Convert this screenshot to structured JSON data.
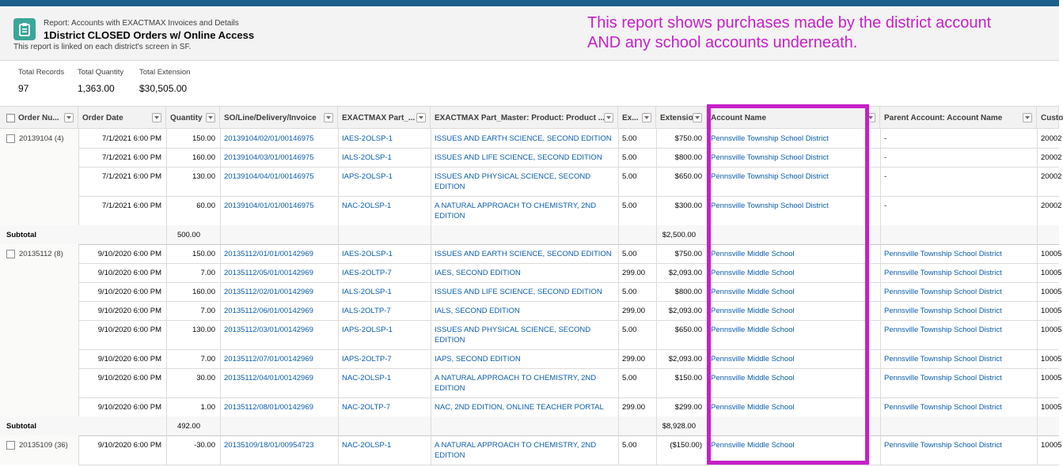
{
  "report": {
    "type_label": "Report: Accounts with EXACTMAX Invoices and Details",
    "title": "1District CLOSED Orders w/ Online Access",
    "description": "This report is linked on each district's screen in SF.",
    "icon": "report-icon"
  },
  "annotation": "This report shows purchases made by the district account AND any school accounts underneath.",
  "annotation_color": "#c620c8",
  "summary": [
    {
      "label": "Total Records",
      "value": "97"
    },
    {
      "label": "Total Quantity",
      "value": "1,363.00"
    },
    {
      "label": "Total Extension",
      "value": "$30,505.00"
    }
  ],
  "columns": [
    "Order Nu...",
    "Order Date",
    "Quantity",
    "SO/Line/Delivery/Invoice",
    "EXACTMAX Part_...",
    "EXACTMAX Part_Master: Product: Product ...",
    "Ex...",
    "Extension",
    "Account Name",
    "Parent Account: Account Name",
    "Custo"
  ],
  "groups": [
    {
      "order": "20139104 (4)",
      "rows": [
        {
          "date": "7/1/2021 6:00 PM",
          "qty": "150.00",
          "so": "20139104/02/01/00146975",
          "part": "IAES-2OLSP-1",
          "product": "ISSUES AND EARTH SCIENCE, SECOND EDITION",
          "ex": "5.00",
          "extension": "$750.00",
          "account": "Pennsville Township School District",
          "parent": "-",
          "customer": "20002"
        },
        {
          "date": "7/1/2021 6:00 PM",
          "qty": "160.00",
          "so": "20139104/03/01/00146975",
          "part": "IALS-2OLSP-1",
          "product": "ISSUES AND LIFE SCIENCE, SECOND EDITION",
          "ex": "5.00",
          "extension": "$800.00",
          "account": "Pennsville Township School District",
          "parent": "-",
          "customer": "20002"
        },
        {
          "date": "7/1/2021 6:00 PM",
          "qty": "130.00",
          "so": "20139104/04/01/00146975",
          "part": "IAPS-2OLSP-1",
          "product": "ISSUES AND PHYSICAL SCIENCE, SECOND EDITION",
          "ex": "5.00",
          "extension": "$650.00",
          "account": "Pennsville Township School District",
          "parent": "-",
          "customer": "20002"
        },
        {
          "date": "7/1/2021 6:00 PM",
          "qty": "60.00",
          "so": "20139104/01/01/00146975",
          "part": "NAC-2OLSP-1",
          "product": "A NATURAL APPROACH TO CHEMISTRY, 2ND EDITION",
          "ex": "5.00",
          "extension": "$300.00",
          "account": "Pennsville Township School District",
          "parent": "-",
          "customer": "20002"
        }
      ],
      "subtotal": {
        "label": "Subtotal",
        "qty": "500.00",
        "extension": "$2,500.00"
      }
    },
    {
      "order": "20135112 (8)",
      "rows": [
        {
          "date": "9/10/2020 6:00 PM",
          "qty": "150.00",
          "so": "20135112/01/01/00142969",
          "part": "IAES-2OLSP-1",
          "product": "ISSUES AND EARTH SCIENCE, SECOND EDITION",
          "ex": "5.00",
          "extension": "$750.00",
          "account": "Pennsville Middle School",
          "parent": "Pennsville Township School District",
          "customer": "10005"
        },
        {
          "date": "9/10/2020 6:00 PM",
          "qty": "7.00",
          "so": "20135112/05/01/00142969",
          "part": "IAES-2OLTP-7",
          "product": "IAES, SECOND EDITION",
          "ex": "299.00",
          "extension": "$2,093.00",
          "account": "Pennsville Middle School",
          "parent": "Pennsville Township School District",
          "customer": "10005"
        },
        {
          "date": "9/10/2020 6:00 PM",
          "qty": "160.00",
          "so": "20135112/02/01/00142969",
          "part": "IALS-2OLSP-1",
          "product": "ISSUES AND LIFE SCIENCE, SECOND EDITION",
          "ex": "5.00",
          "extension": "$800.00",
          "account": "Pennsville Middle School",
          "parent": "Pennsville Township School District",
          "customer": "10005"
        },
        {
          "date": "9/10/2020 6:00 PM",
          "qty": "7.00",
          "so": "20135112/06/01/00142969",
          "part": "IALS-2OLTP-7",
          "product": "IALS, SECOND EDITION",
          "ex": "299.00",
          "extension": "$2,093.00",
          "account": "Pennsville Middle School",
          "parent": "Pennsville Township School District",
          "customer": "10005"
        },
        {
          "date": "9/10/2020 6:00 PM",
          "qty": "130.00",
          "so": "20135112/03/01/00142969",
          "part": "IAPS-2OLSP-1",
          "product": "ISSUES AND PHYSICAL SCIENCE, SECOND EDITION",
          "ex": "5.00",
          "extension": "$650.00",
          "account": "Pennsville Middle School",
          "parent": "Pennsville Township School District",
          "customer": "10005"
        },
        {
          "date": "9/10/2020 6:00 PM",
          "qty": "7.00",
          "so": "20135112/07/01/00142969",
          "part": "IAPS-2OLTP-7",
          "product": "IAPS, SECOND EDITION",
          "ex": "299.00",
          "extension": "$2,093.00",
          "account": "Pennsville Middle School",
          "parent": "Pennsville Township School District",
          "customer": "10005"
        },
        {
          "date": "9/10/2020 6:00 PM",
          "qty": "30.00",
          "so": "20135112/04/01/00142969",
          "part": "NAC-2OLSP-1",
          "product": "A NATURAL APPROACH TO CHEMISTRY, 2ND EDITION",
          "ex": "5.00",
          "extension": "$150.00",
          "account": "Pennsville Middle School",
          "parent": "Pennsville Township School District",
          "customer": "10005"
        },
        {
          "date": "9/10/2020 6:00 PM",
          "qty": "1.00",
          "so": "20135112/08/01/00142969",
          "part": "NAC-2OLTP-7",
          "product": "NAC, 2ND EDITION, ONLINE TEACHER PORTAL",
          "ex": "299.00",
          "extension": "$299.00",
          "account": "Pennsville Middle School",
          "parent": "Pennsville Township School District",
          "customer": "10005"
        }
      ],
      "subtotal": {
        "label": "Subtotal",
        "qty": "492.00",
        "extension": "$8,928.00"
      }
    },
    {
      "order": "20135109 (36)",
      "rows": [
        {
          "date": "9/10/2020 6:00 PM",
          "qty": "-30.00",
          "so": "20135109/18/01/00954723",
          "part": "NAC-2OLSP-1",
          "product": "A NATURAL APPROACH TO CHEMISTRY, 2ND EDITION",
          "ex": "5.00",
          "extension": "($150.00)",
          "account": "Pennsville Middle School",
          "parent": "Pennsville Township School District",
          "customer": "10005"
        }
      ]
    }
  ]
}
